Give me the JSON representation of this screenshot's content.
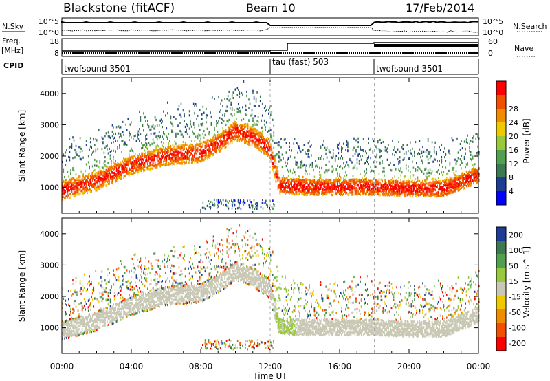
{
  "header": {
    "station": "Blackstone (fitACF)",
    "beam": "Beam 10",
    "date": "17/Feb/2014"
  },
  "left_labels": {
    "nsky": "N.Sky",
    "freq_line1": "Freq.",
    "freq_line2": "[MHz]",
    "cpid": "CPID"
  },
  "right_labels": {
    "nsearch": "N.Search",
    "nave": "Nave"
  },
  "noise_panel": {
    "left_ticks": [
      "10^5",
      "10^0"
    ],
    "right_ticks": [
      "10^5",
      "10^0"
    ]
  },
  "freq_panel": {
    "left_ticks": [
      "18",
      "8"
    ],
    "right_ticks": [
      "60",
      "0"
    ]
  },
  "cpid_panel": {
    "segments": [
      {
        "label": "twofsound 3501",
        "start_hour": 0
      },
      {
        "label": "tau (fast) 503",
        "start_hour": 12
      },
      {
        "label": "twofsound 3501",
        "start_hour": 18
      }
    ]
  },
  "colors": {
    "power": [
      "#0000ff",
      "#1e3c96",
      "#3c7850",
      "#50a050",
      "#98c83c",
      "#f0c800",
      "#f08c00",
      "#f05000",
      "#ff0000"
    ],
    "velocity": [
      "#1e3c96",
      "#3c7850",
      "#50a050",
      "#98c83c",
      "#c8c8b4",
      "#f0c800",
      "#f08c00",
      "#f05000",
      "#ff0000"
    ]
  },
  "chart_data": [
    {
      "type": "heatmap",
      "title": "",
      "xlabel": "Time UT",
      "ylabel": "Slant Range [km]",
      "xlim": [
        0,
        24
      ],
      "ylim": [
        180,
        4500
      ],
      "x_ticks": [
        "00:00",
        "04:00",
        "08:00",
        "12:00",
        "16:00",
        "20:00",
        "00:00"
      ],
      "y_ticks": [
        "1000",
        "2000",
        "3000",
        "4000"
      ],
      "colorbar": {
        "label": "Power [dB]",
        "range": [
          0,
          32
        ],
        "ticks": [
          "4",
          "8",
          "12",
          "16",
          "20",
          "24",
          "28"
        ]
      },
      "features": [
        {
          "name": "main scatter band",
          "x": [
            0,
            2,
            4,
            6,
            8,
            9,
            10,
            11,
            12
          ],
          "y": [
            900,
            1200,
            1700,
            2000,
            2100,
            2400,
            2800,
            2600,
            2200
          ]
        },
        {
          "name": "near range band",
          "x": [
            12.5,
            14,
            16,
            18,
            20,
            22,
            24
          ],
          "y": [
            1050,
            1000,
            1000,
            1000,
            950,
            950,
            1400
          ]
        }
      ]
    },
    {
      "type": "heatmap",
      "title": "",
      "xlabel": "Time UT",
      "ylabel": "Slant Range [km]",
      "xlim": [
        0,
        24
      ],
      "ylim": [
        180,
        4500
      ],
      "x_ticks": [
        "00:00",
        "04:00",
        "08:00",
        "12:00",
        "16:00",
        "20:00",
        "00:00"
      ],
      "y_ticks": [
        "1000",
        "2000",
        "3000",
        "4000"
      ],
      "colorbar": {
        "label": "Velocity [m s^-1]",
        "range": [
          -250,
          250
        ],
        "ticks": [
          "200",
          "100",
          "50",
          "15",
          "-15",
          "-50",
          "-100",
          "-200"
        ]
      }
    }
  ]
}
